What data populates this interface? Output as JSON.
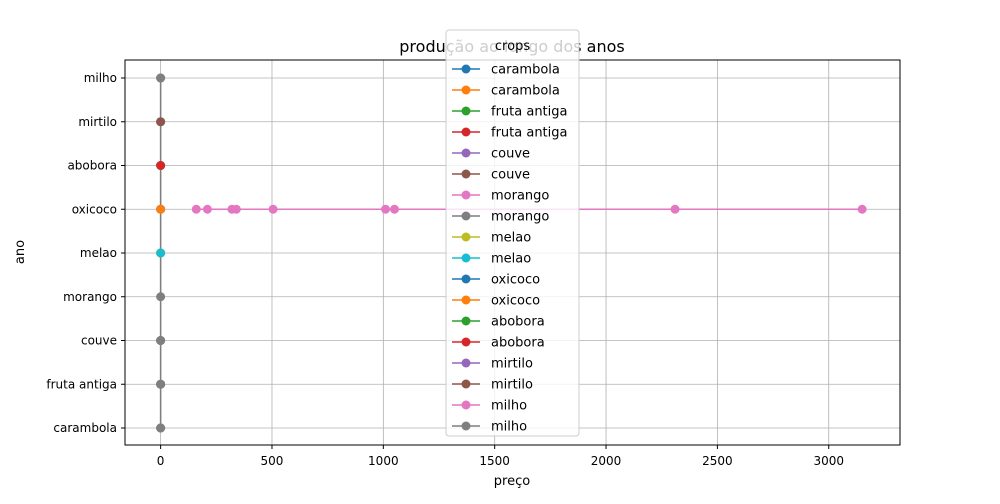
{
  "chart_data": {
    "type": "line",
    "title": "produção ao longo dos anos",
    "xlabel": "preço",
    "ylabel": "ano",
    "xlim": [
      -160,
      3320
    ],
    "xticks": [
      0,
      500,
      1000,
      1500,
      2000,
      2500,
      3000
    ],
    "categories": [
      "carambola",
      "fruta antiga",
      "couve",
      "morango",
      "melao",
      "oxicoco",
      "abobora",
      "mirtilo",
      "milho"
    ],
    "grid": true,
    "legend": {
      "title": "crops",
      "position": "top-center"
    },
    "series": [
      {
        "name": "carambola",
        "color": "#1f77b4",
        "points": [
          [
            0,
            "carambola"
          ]
        ]
      },
      {
        "name": "carambola",
        "color": "#ff7f0e",
        "points": [
          [
            0,
            "carambola"
          ]
        ]
      },
      {
        "name": "fruta antiga",
        "color": "#2ca02c",
        "points": [
          [
            0,
            "fruta antiga"
          ]
        ]
      },
      {
        "name": "fruta antiga",
        "color": "#d62728",
        "points": [
          [
            0,
            "fruta antiga"
          ]
        ]
      },
      {
        "name": "couve",
        "color": "#9467bd",
        "points": [
          [
            0,
            "couve"
          ]
        ]
      },
      {
        "name": "couve",
        "color": "#8c564b",
        "points": [
          [
            0,
            "couve"
          ]
        ]
      },
      {
        "name": "morango",
        "color": "#e377c2",
        "points": [
          [
            160,
            "oxicoco"
          ],
          [
            210,
            "oxicoco"
          ],
          [
            320,
            "oxicoco"
          ],
          [
            340,
            "oxicoco"
          ],
          [
            505,
            "oxicoco"
          ],
          [
            1010,
            "oxicoco"
          ],
          [
            1050,
            "oxicoco"
          ],
          [
            2310,
            "oxicoco"
          ],
          [
            3150,
            "oxicoco"
          ]
        ]
      },
      {
        "name": "morango",
        "color": "#7f7f7f",
        "points": [
          [
            0,
            "carambola"
          ],
          [
            0,
            "fruta antiga"
          ],
          [
            0,
            "couve"
          ],
          [
            0,
            "morango"
          ],
          [
            0,
            "melao"
          ],
          [
            0,
            "oxicoco"
          ],
          [
            0,
            "abobora"
          ],
          [
            0,
            "mirtilo"
          ],
          [
            0,
            "milho"
          ]
        ]
      },
      {
        "name": "melao",
        "color": "#bcbd22",
        "points": [
          [
            0,
            "melao"
          ]
        ]
      },
      {
        "name": "melao",
        "color": "#17becf",
        "points": [
          [
            0,
            "melao"
          ]
        ]
      },
      {
        "name": "oxicoco",
        "color": "#1f77b4",
        "points": [
          [
            0,
            "oxicoco"
          ]
        ]
      },
      {
        "name": "oxicoco",
        "color": "#ff7f0e",
        "points": [
          [
            0,
            "oxicoco"
          ]
        ]
      },
      {
        "name": "abobora",
        "color": "#2ca02c",
        "points": [
          [
            0,
            "abobora"
          ]
        ]
      },
      {
        "name": "abobora",
        "color": "#d62728",
        "points": [
          [
            0,
            "abobora"
          ]
        ]
      },
      {
        "name": "mirtilo",
        "color": "#9467bd",
        "points": [
          [
            0,
            "mirtilo"
          ]
        ]
      },
      {
        "name": "mirtilo",
        "color": "#8c564b",
        "points": [
          [
            0,
            "mirtilo"
          ]
        ]
      },
      {
        "name": "milho",
        "color": "#e377c2",
        "points": [
          [
            0,
            "milho"
          ]
        ]
      },
      {
        "name": "milho",
        "color": "#7f7f7f",
        "points": [
          [
            0,
            "milho"
          ]
        ]
      }
    ]
  }
}
